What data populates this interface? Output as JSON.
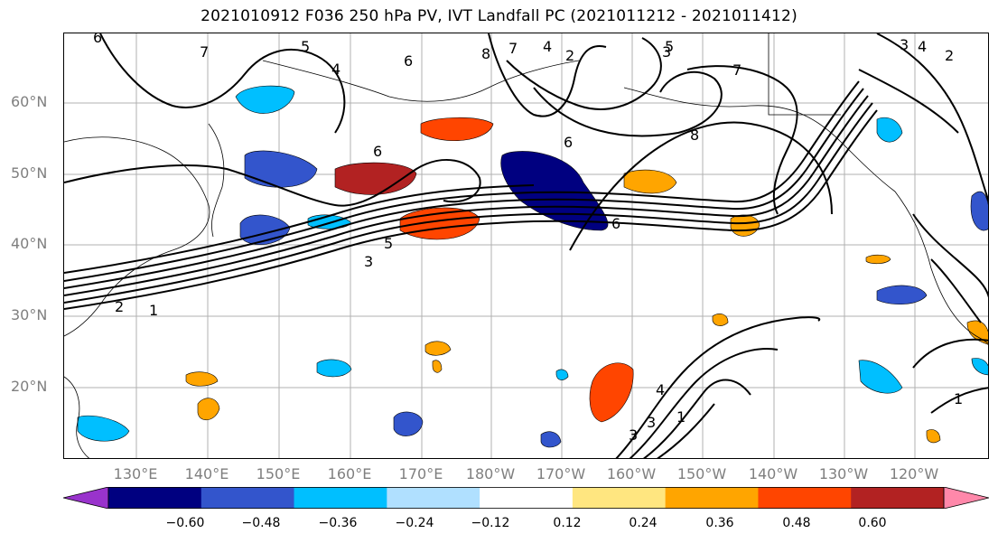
{
  "title": "2021010912 F036 250 hPa PV, IVT Landfall PC (2021011212 - 2021011412)",
  "lat_labels": [
    "60°N",
    "50°N",
    "40°N",
    "30°N",
    "20°N"
  ],
  "lon_labels": [
    "130°E",
    "140°E",
    "150°E",
    "160°E",
    "170°E",
    "180°W",
    "170°W",
    "160°W",
    "150°W",
    "140°W",
    "130°W",
    "120°W"
  ],
  "colorbar": {
    "tick_labels": [
      "−0.60",
      "−0.48",
      "−0.36",
      "−0.24",
      "−0.12",
      "0.12",
      "0.24",
      "0.36",
      "0.48",
      "0.60"
    ],
    "colors": [
      "#9933cc",
      "#000080",
      "#3355cc",
      "#00bfff",
      "#b0e0ff",
      "#ffffff",
      "#ffe680",
      "#ffa500",
      "#ff4500",
      "#b22222",
      "#ff88aa"
    ]
  },
  "contour_labels": [
    "6",
    "7",
    "5",
    "4",
    "6",
    "8",
    "7",
    "4",
    "2",
    "3",
    "5",
    "7",
    "6",
    "8",
    "6",
    "6",
    "5",
    "3",
    "2",
    "1",
    "4",
    "3",
    "2",
    "1",
    "3",
    "4",
    "1",
    "3"
  ],
  "colors": {
    "grid": "#b0b0b0",
    "axis_text": "#7f7f7f"
  }
}
